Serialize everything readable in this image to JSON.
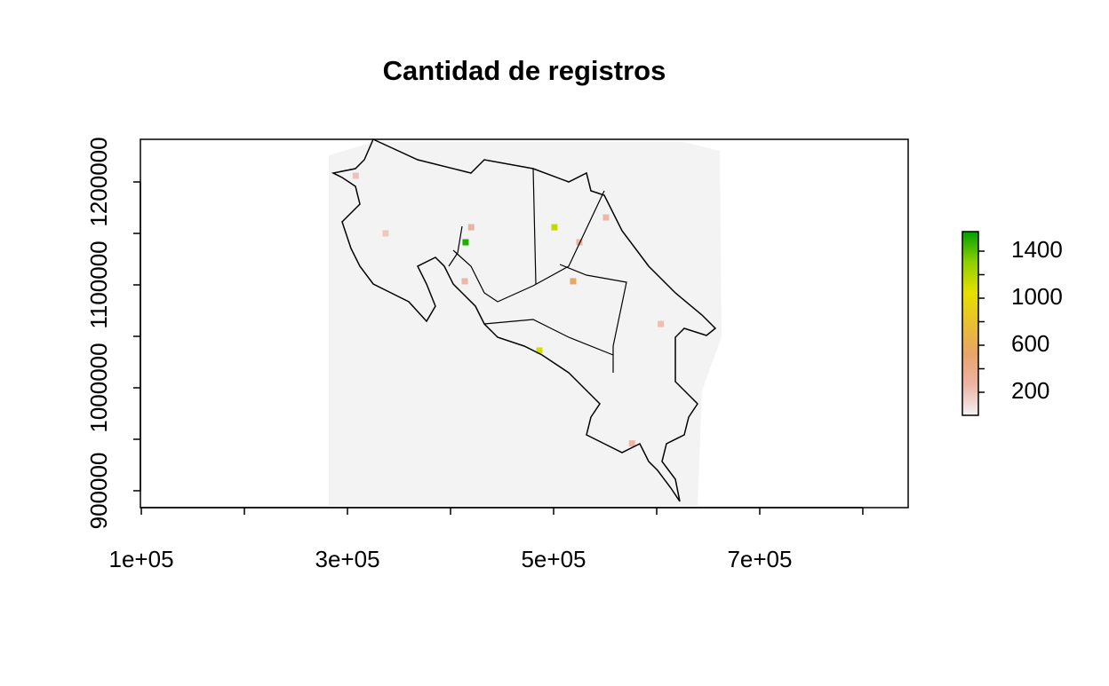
{
  "chart_data": {
    "type": "raster",
    "title": "Cantidad de registros",
    "xlim": [
      99100,
      844000
    ],
    "ylim": [
      883600,
      1241400
    ],
    "xticks": [
      {
        "value": 100000,
        "label": "1e+05"
      },
      {
        "value": 200000,
        "label": null
      },
      {
        "value": 300000,
        "label": "3e+05"
      },
      {
        "value": 400000,
        "label": null
      },
      {
        "value": 500000,
        "label": "5e+05"
      },
      {
        "value": 600000,
        "label": null
      },
      {
        "value": 700000,
        "label": "7e+05"
      },
      {
        "value": 800000,
        "label": null
      }
    ],
    "yticks": [
      900000,
      {
        "value": 950000,
        "label": null
      },
      1000000,
      {
        "value": 1050000,
        "label": null
      },
      1100000,
      {
        "value": 1150000,
        "label": null
      },
      1200000
    ],
    "cells": {
      "x": [
        414600,
        500800,
        486200,
        518900,
        550800,
        420000,
        525000,
        413800,
        576000,
        308000,
        604000,
        337000
      ],
      "y": [
        1141400,
        1156000,
        1036200,
        1103500,
        1165500,
        1156000,
        1141400,
        1103500,
        946000,
        1206000,
        1062000,
        1150000
      ],
      "values": [
        1500,
        1150,
        1100,
        550,
        250,
        300,
        280,
        250,
        250,
        200,
        220,
        180
      ]
    },
    "zlim": [
      4,
      1566
    ],
    "zticks": [
      200,
      {
        "value": 400,
        "label": null
      },
      600,
      {
        "value": 800,
        "label": null
      },
      1000,
      {
        "value": 1200,
        "label": null
      },
      1400
    ],
    "colors": [
      "#f2f2f2",
      "#ecb4a4",
      "#e9a36a",
      "#e8c030",
      "#e6e000",
      "#8fd000",
      "#00a000"
    ]
  }
}
